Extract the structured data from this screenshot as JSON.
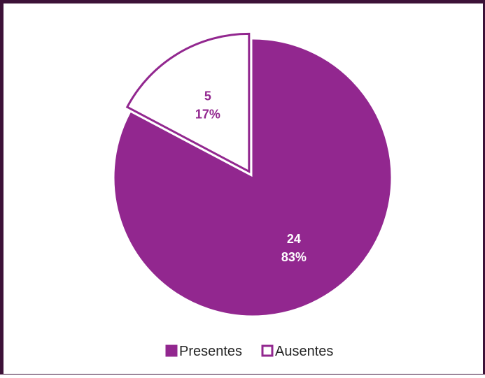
{
  "chart_data": {
    "type": "pie",
    "categories": [
      "Presentes",
      "Ausentes"
    ],
    "values": [
      24,
      5
    ],
    "percent_labels": [
      "83%",
      "17%"
    ],
    "exploded": [
      false,
      true
    ],
    "colors": {
      "Presentes": "#92278f",
      "Ausentes": "#ffffff",
      "outline": "#92278f",
      "label_on_fill": "#ffffff",
      "label_on_white": "#92278f"
    },
    "legend": {
      "position": "bottom",
      "entries": [
        "Presentes",
        "Ausentes"
      ]
    },
    "title": ""
  }
}
